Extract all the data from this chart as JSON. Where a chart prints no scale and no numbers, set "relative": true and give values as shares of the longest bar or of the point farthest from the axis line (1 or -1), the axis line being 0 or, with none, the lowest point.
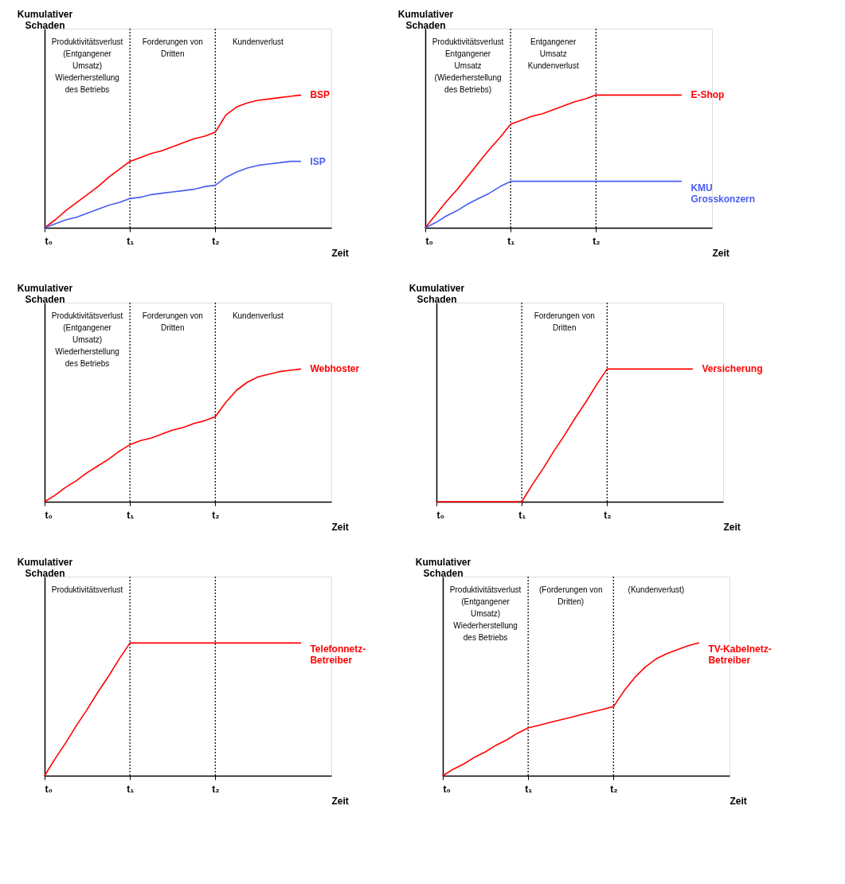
{
  "chart_data": [
    {
      "type": "line",
      "relative": true,
      "ylabel": "Kumulativer\nSchaden",
      "xlabel": "Zeit",
      "categories": [
        "t₀",
        null,
        null,
        null,
        null,
        null,
        null,
        null,
        "t₁",
        null,
        null,
        null,
        null,
        null,
        null,
        null,
        "t₂",
        null,
        null,
        null,
        null,
        null,
        null,
        null,
        null
      ],
      "tick_labels": "x",
      "grid": false,
      "legend": false,
      "marker": "none",
      "line_style": "solid",
      "ref_lines": [
        {
          "axis": "x",
          "value": "t₁",
          "line_style": "dotted"
        },
        {
          "axis": "x",
          "value": "t₂",
          "line_style": "dotted"
        }
      ],
      "annotations": [
        "Produktivitätsverlust\n(Entgangener\nUmsatz)\nWiederherstellung\ndes Betriebs",
        "Forderungen von\nDritten",
        "Kundenverlust"
      ],
      "series": [
        {
          "name": "BSP",
          "color": "#ff0000",
          "values": [
            0,
            0.06,
            0.13,
            0.19,
            0.25,
            0.31,
            0.38,
            0.44,
            0.5,
            0.53,
            0.56,
            0.58,
            0.61,
            0.64,
            0.67,
            0.69,
            0.72,
            0.85,
            0.91,
            0.94,
            0.96,
            0.97,
            0.98,
            0.99,
            1.0
          ]
        },
        {
          "name": "ISP",
          "color": "#4a5cf0",
          "values": [
            0,
            0.03,
            0.06,
            0.08,
            0.11,
            0.14,
            0.17,
            0.19,
            0.22,
            0.23,
            0.25,
            0.26,
            0.27,
            0.28,
            0.29,
            0.31,
            0.32,
            0.38,
            0.42,
            0.45,
            0.47,
            0.48,
            0.49,
            0.5,
            0.5
          ]
        }
      ]
    },
    {
      "type": "line",
      "relative": true,
      "ylabel": "Kumulativer\nSchaden",
      "xlabel": "Zeit",
      "categories": [
        "t₀",
        null,
        null,
        null,
        null,
        null,
        null,
        null,
        "t₁",
        null,
        null,
        null,
        null,
        null,
        null,
        null,
        "t₂",
        null,
        null,
        null,
        null,
        null,
        null,
        null,
        null
      ],
      "tick_labels": "x",
      "grid": false,
      "legend": false,
      "marker": "none",
      "line_style": "solid",
      "ref_lines": [
        {
          "axis": "x",
          "value": "t₁",
          "line_style": "dotted"
        },
        {
          "axis": "x",
          "value": "t₂",
          "line_style": "dotted"
        }
      ],
      "annotations": [
        "Produktivitätsverlust\nEntgangener\nUmsatz\n(Wiederherstellung\ndes Betriebs)",
        "Entgangener\nUmsatz\nKundenverlust"
      ],
      "series": [
        {
          "name": "E-Shop",
          "color": "#ff0000",
          "values": [
            0,
            0.1,
            0.2,
            0.29,
            0.39,
            0.49,
            0.59,
            0.68,
            0.78,
            0.81,
            0.84,
            0.86,
            0.89,
            0.92,
            0.95,
            0.97,
            1.0,
            1.0,
            1.0,
            1.0,
            1.0,
            1.0,
            1.0,
            1.0,
            1.0
          ]
        },
        {
          "name": "KMU\nGrosskonzern",
          "color": "#4a5cf0",
          "values": [
            0,
            0.04,
            0.09,
            0.13,
            0.18,
            0.22,
            0.26,
            0.31,
            0.35,
            0.35,
            0.35,
            0.35,
            0.35,
            0.35,
            0.35,
            0.35,
            0.35,
            0.35,
            0.35,
            0.35,
            0.35,
            0.35,
            0.35,
            0.35,
            0.35
          ]
        }
      ]
    },
    {
      "type": "line",
      "relative": true,
      "ylabel": "Kumulativer\nSchaden",
      "xlabel": "Zeit",
      "categories": [
        "t₀",
        null,
        null,
        null,
        null,
        null,
        null,
        null,
        "t₁",
        null,
        null,
        null,
        null,
        null,
        null,
        null,
        "t₂",
        null,
        null,
        null,
        null,
        null,
        null,
        null,
        null
      ],
      "tick_labels": "x",
      "grid": false,
      "legend": false,
      "marker": "none",
      "line_style": "solid",
      "ref_lines": [
        {
          "axis": "x",
          "value": "t₁",
          "line_style": "dotted"
        },
        {
          "axis": "x",
          "value": "t₂",
          "line_style": "dotted"
        }
      ],
      "annotations": [
        "Produktivitätsverlust\n(Entgangener\nUmsatz)\nWiederherstellung\ndes Betriebs",
        "Forderungen von\nDritten",
        "Kundenverlust"
      ],
      "series": [
        {
          "name": "Webhoster",
          "color": "#ff0000",
          "values": [
            0,
            0.05,
            0.11,
            0.16,
            0.22,
            0.27,
            0.32,
            0.38,
            0.43,
            0.46,
            0.48,
            0.51,
            0.54,
            0.56,
            0.59,
            0.61,
            0.64,
            0.75,
            0.84,
            0.9,
            0.94,
            0.96,
            0.98,
            0.99,
            1.0
          ]
        }
      ]
    },
    {
      "type": "line",
      "relative": true,
      "ylabel": "Kumulativer\nSchaden",
      "xlabel": "Zeit",
      "categories": [
        "t₀",
        null,
        null,
        null,
        null,
        null,
        null,
        null,
        "t₁",
        null,
        null,
        null,
        null,
        null,
        null,
        null,
        "t₂",
        null,
        null,
        null,
        null,
        null,
        null,
        null,
        null
      ],
      "tick_labels": "x",
      "grid": false,
      "legend": false,
      "marker": "none",
      "line_style": "solid",
      "ref_lines": [
        {
          "axis": "x",
          "value": "t₁",
          "line_style": "dotted"
        },
        {
          "axis": "x",
          "value": "t₂",
          "line_style": "dotted"
        }
      ],
      "annotations": [
        "Forderungen von\nDritten"
      ],
      "series": [
        {
          "name": "Versicherung",
          "color": "#ff0000",
          "values": [
            0,
            0,
            0,
            0,
            0,
            0,
            0,
            0,
            0,
            0.13,
            0.25,
            0.38,
            0.5,
            0.63,
            0.75,
            0.88,
            1.0,
            1.0,
            1.0,
            1.0,
            1.0,
            1.0,
            1.0,
            1.0,
            1.0
          ]
        }
      ]
    },
    {
      "type": "line",
      "relative": true,
      "ylabel": "Kumulativer\nSchaden",
      "xlabel": "Zeit",
      "categories": [
        "t₀",
        null,
        null,
        null,
        null,
        null,
        null,
        null,
        "t₁",
        null,
        null,
        null,
        null,
        null,
        null,
        null,
        "t₂",
        null,
        null,
        null,
        null,
        null,
        null,
        null,
        null
      ],
      "tick_labels": "x",
      "grid": false,
      "legend": false,
      "marker": "none",
      "line_style": "solid",
      "ref_lines": [
        {
          "axis": "x",
          "value": "t₁",
          "line_style": "dotted"
        },
        {
          "axis": "x",
          "value": "t₂",
          "line_style": "dotted"
        }
      ],
      "annotations": [
        "Produktivitätsverlust"
      ],
      "series": [
        {
          "name": "Telefonnetz-\nBetreiber",
          "color": "#ff0000",
          "values": [
            0,
            0.13,
            0.25,
            0.38,
            0.5,
            0.63,
            0.75,
            0.88,
            1.0,
            1.0,
            1.0,
            1.0,
            1.0,
            1.0,
            1.0,
            1.0,
            1.0,
            1.0,
            1.0,
            1.0,
            1.0,
            1.0,
            1.0,
            1.0,
            1.0
          ]
        }
      ]
    },
    {
      "type": "line",
      "relative": true,
      "ylabel": "Kumulativer\nSchaden",
      "xlabel": "Zeit",
      "categories": [
        "t₀",
        null,
        null,
        null,
        null,
        null,
        null,
        null,
        "t₁",
        null,
        null,
        null,
        null,
        null,
        null,
        null,
        "t₂",
        null,
        null,
        null,
        null,
        null,
        null,
        null,
        null
      ],
      "tick_labels": "x",
      "grid": false,
      "legend": false,
      "marker": "none",
      "line_style": "solid",
      "ref_lines": [
        {
          "axis": "x",
          "value": "t₁",
          "line_style": "dotted"
        },
        {
          "axis": "x",
          "value": "t₂",
          "line_style": "dotted"
        }
      ],
      "annotations": [
        "Produktivitätsverlust\n(Entgangener\nUmsatz)\nWiederherstellung\ndes Betriebs",
        "(Forderungen von\nDritten)",
        "(Kundenverlust)"
      ],
      "series": [
        {
          "name": "TV-Kabelnetz-\nBetreiber",
          "color": "#ff0000",
          "values": [
            0,
            0.05,
            0.09,
            0.14,
            0.18,
            0.23,
            0.27,
            0.32,
            0.36,
            0.38,
            0.4,
            0.42,
            0.44,
            0.46,
            0.48,
            0.5,
            0.52,
            0.64,
            0.74,
            0.82,
            0.88,
            0.92,
            0.95,
            0.98,
            1.0
          ]
        }
      ]
    }
  ]
}
